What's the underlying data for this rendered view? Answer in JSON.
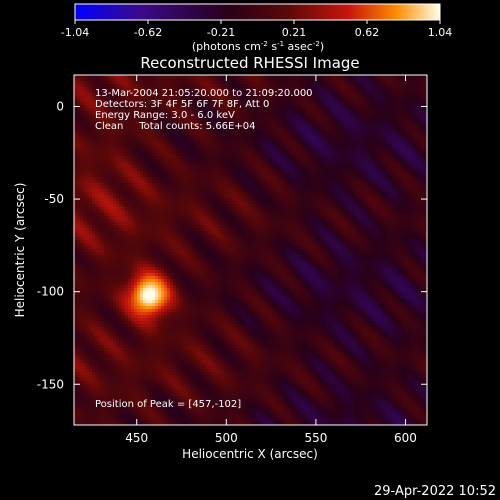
{
  "chart_data": {
    "type": "heatmap",
    "title": "Reconstructed RHESSI Image",
    "xlabel": "Heliocentric X (arcsec)",
    "ylabel": "Heliocentric Y (arcsec)",
    "xlim": [
      415,
      612
    ],
    "ylim": [
      -172,
      17
    ],
    "x_ticks": [
      450,
      500,
      550,
      600
    ],
    "y_ticks": [
      0,
      -50,
      -100,
      -150
    ],
    "colorbar": {
      "range": [
        -1.04,
        1.04
      ],
      "ticks": [
        "-1.04",
        "-0.62",
        "-0.21",
        "0.21",
        "0.62",
        "1.04"
      ],
      "unit_text": "(photons cm",
      "unit_sup1": "-2",
      "unit_mid1": " s",
      "unit_sup2": "-1",
      "unit_mid2": " asec",
      "unit_sup3": "-2",
      "unit_end": ")"
    },
    "annotations": [
      "13-Mar-2004 21:05:20.000 to 21:09:20.000",
      "Detectors: 3F 4F 5F 6F 7F 8F, Att 0",
      "Energy Range: 3.0 - 6.0 keV",
      "Clean     Total counts: 5.66E+04"
    ],
    "peak_text": "Position of Peak = [457,-102]",
    "peak": {
      "x": 457,
      "y": -102,
      "value": 1.04
    },
    "timestamp": "29-Apr-2022 10:52"
  },
  "colors": {
    "background": "#000000",
    "foreground": "#ffffff",
    "colormap": [
      "#0000ff",
      "#3a0a78",
      "#1a0016",
      "#6a0a0a",
      "#d01a10",
      "#ff9a00",
      "#ffffe0"
    ]
  }
}
